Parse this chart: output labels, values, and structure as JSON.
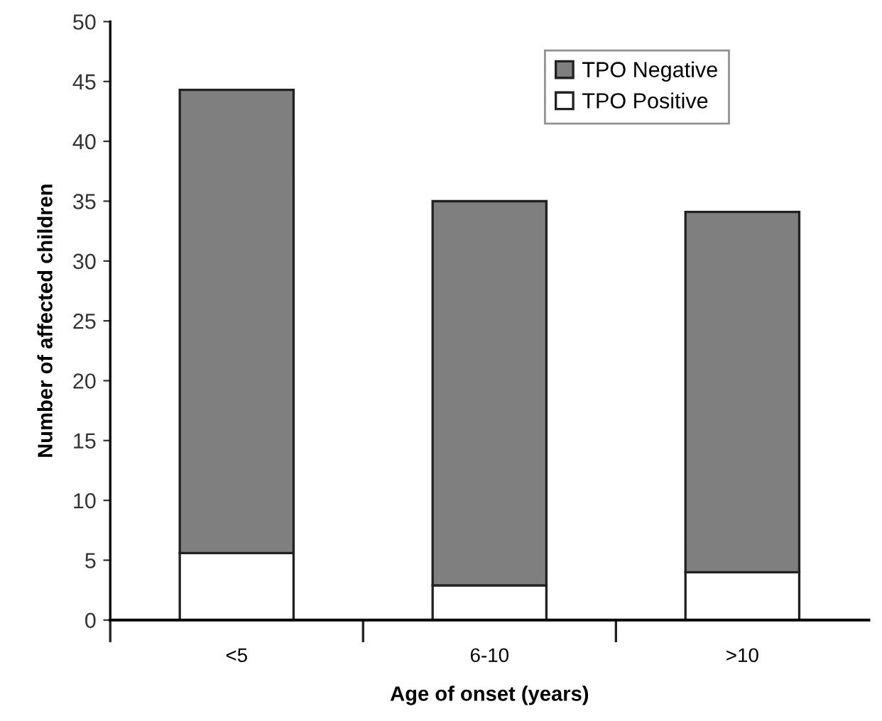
{
  "chart_data": {
    "type": "bar",
    "stacked": true,
    "xlabel": "Age of onset (years)",
    "ylabel": "Number of affected children",
    "categories": [
      "<5",
      "6-10",
      ">10"
    ],
    "series": [
      {
        "name": "TPO Positive",
        "color": "#ffffff",
        "values": [
          5.6,
          2.9,
          4.0
        ]
      },
      {
        "name": "TPO Negative",
        "color": "#7f7f7f",
        "values": [
          38.7,
          32.1,
          30.1
        ]
      }
    ],
    "ylim": [
      0,
      50
    ],
    "yticks": [
      0,
      5,
      10,
      15,
      20,
      25,
      30,
      35,
      40,
      45,
      50
    ],
    "grid": false,
    "legend": "top right"
  }
}
